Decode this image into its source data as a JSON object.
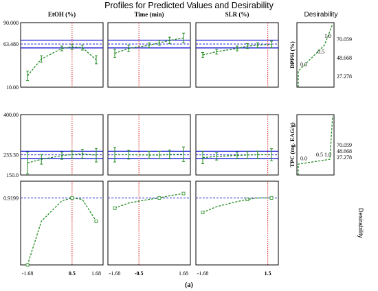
{
  "title": "Profiles for Predicted Values and Desirability",
  "desirability_header": "Desirability",
  "caption": "(a)",
  "columns": [
    {
      "header": "EtOH (%)",
      "x_ticks": [
        "-1.68",
        "0.5",
        "1.68"
      ],
      "bold_tick": "0.5",
      "current": 0.5
    },
    {
      "header": "Time (min)",
      "x_ticks": [
        "-1.68",
        "-0.5",
        "1.68"
      ],
      "bold_tick": "-0.5",
      "current": -0.5
    },
    {
      "header": "SLR (%)",
      "x_ticks": [
        "-1.68",
        "1.5"
      ],
      "bold_tick": "1.5",
      "current": 1.5
    }
  ],
  "rows": [
    {
      "ylabel": "DPPH (%)",
      "y_ticks": [
        "90.000",
        "63.480",
        "10.00"
      ],
      "ylim": [
        10,
        90
      ],
      "predicted": 63.48,
      "desirability_values": [
        "70.059",
        "48.668",
        "27.278"
      ],
      "desirability_labels": [
        "0.0",
        "0.5",
        "1.0"
      ]
    },
    {
      "ylabel": "TPC (mg. EAG/g)",
      "y_ticks": [
        "400.00",
        "233.30",
        "150.0"
      ],
      "ylim": [
        150,
        400
      ],
      "predicted": 233.3,
      "desirability_values": [
        "70.059",
        "48.668",
        "27.278"
      ],
      "desirability_labels": [
        "0.0",
        "0.5",
        "1.0"
      ]
    },
    {
      "ylabel": "Desirability",
      "y_ticks": [
        "0.9199"
      ],
      "ylim": [
        0,
        1.15
      ],
      "predicted": 0.9199
    }
  ],
  "colors": {
    "curve": "#1e8a1e",
    "predicted_line": "#1a1ad6",
    "current_line": "#d62020",
    "frame": "#000000"
  },
  "chart_data": {
    "type": "line",
    "title": "Profiles for Predicted Values and Desirability",
    "x": [
      -1.68,
      -1,
      0,
      0.5,
      1,
      1.68
    ],
    "panels": [
      {
        "row": "DPPH (%)",
        "factor": "EtOH (%)",
        "values": [
          24,
          45,
          58,
          60,
          59,
          44
        ],
        "err": [
          6,
          4,
          3,
          3,
          3,
          5
        ]
      },
      {
        "row": "DPPH (%)",
        "factor": "Time (min)",
        "values": [
          52,
          58,
          62,
          65,
          68,
          71
        ],
        "err": [
          5,
          4,
          3,
          3,
          4,
          6
        ]
      },
      {
        "row": "DPPH (%)",
        "factor": "SLR (%)",
        "values": [
          50,
          54,
          58,
          61,
          62,
          63
        ],
        "err": [
          3,
          3,
          3,
          3,
          3,
          4
        ]
      },
      {
        "row": "TPC (mg. EAG/g)",
        "factor": "EtOH (%)",
        "values": [
          200,
          215,
          230,
          235,
          238,
          232
        ],
        "err": [
          45,
          20,
          15,
          15,
          18,
          28
        ]
      },
      {
        "row": "TPC (mg. EAG/g)",
        "factor": "Time (min)",
        "values": [
          234,
          234,
          233,
          233,
          235,
          236
        ],
        "err": [
          30,
          18,
          15,
          15,
          18,
          30
        ]
      },
      {
        "row": "TPC (mg. EAG/g)",
        "factor": "SLR (%)",
        "values": [
          222,
          227,
          231,
          233,
          234,
          234
        ],
        "err": [
          25,
          15,
          14,
          14,
          15,
          25
        ]
      },
      {
        "row": "Desirability",
        "factor": "EtOH (%)",
        "values": [
          0.0,
          0.6,
          0.88,
          0.92,
          0.9,
          0.6
        ]
      },
      {
        "row": "Desirability",
        "factor": "Time (min)",
        "values": [
          0.78,
          0.85,
          0.9,
          0.92,
          0.95,
          0.98
        ]
      },
      {
        "row": "Desirability",
        "factor": "SLR (%)",
        "values": [
          0.72,
          0.8,
          0.87,
          0.9,
          0.92,
          0.92
        ]
      }
    ],
    "desirability_functions": [
      {
        "row": "DPPH (%)",
        "points": [
          [
            0,
            27.278
          ],
          [
            0.5,
            48.668
          ],
          [
            1,
            70.059
          ]
        ]
      },
      {
        "row": "TPC (mg. EAG/g)",
        "points": [
          [
            0,
            27.278
          ],
          [
            0.5,
            48.668
          ],
          [
            1,
            70.059
          ]
        ]
      }
    ]
  }
}
